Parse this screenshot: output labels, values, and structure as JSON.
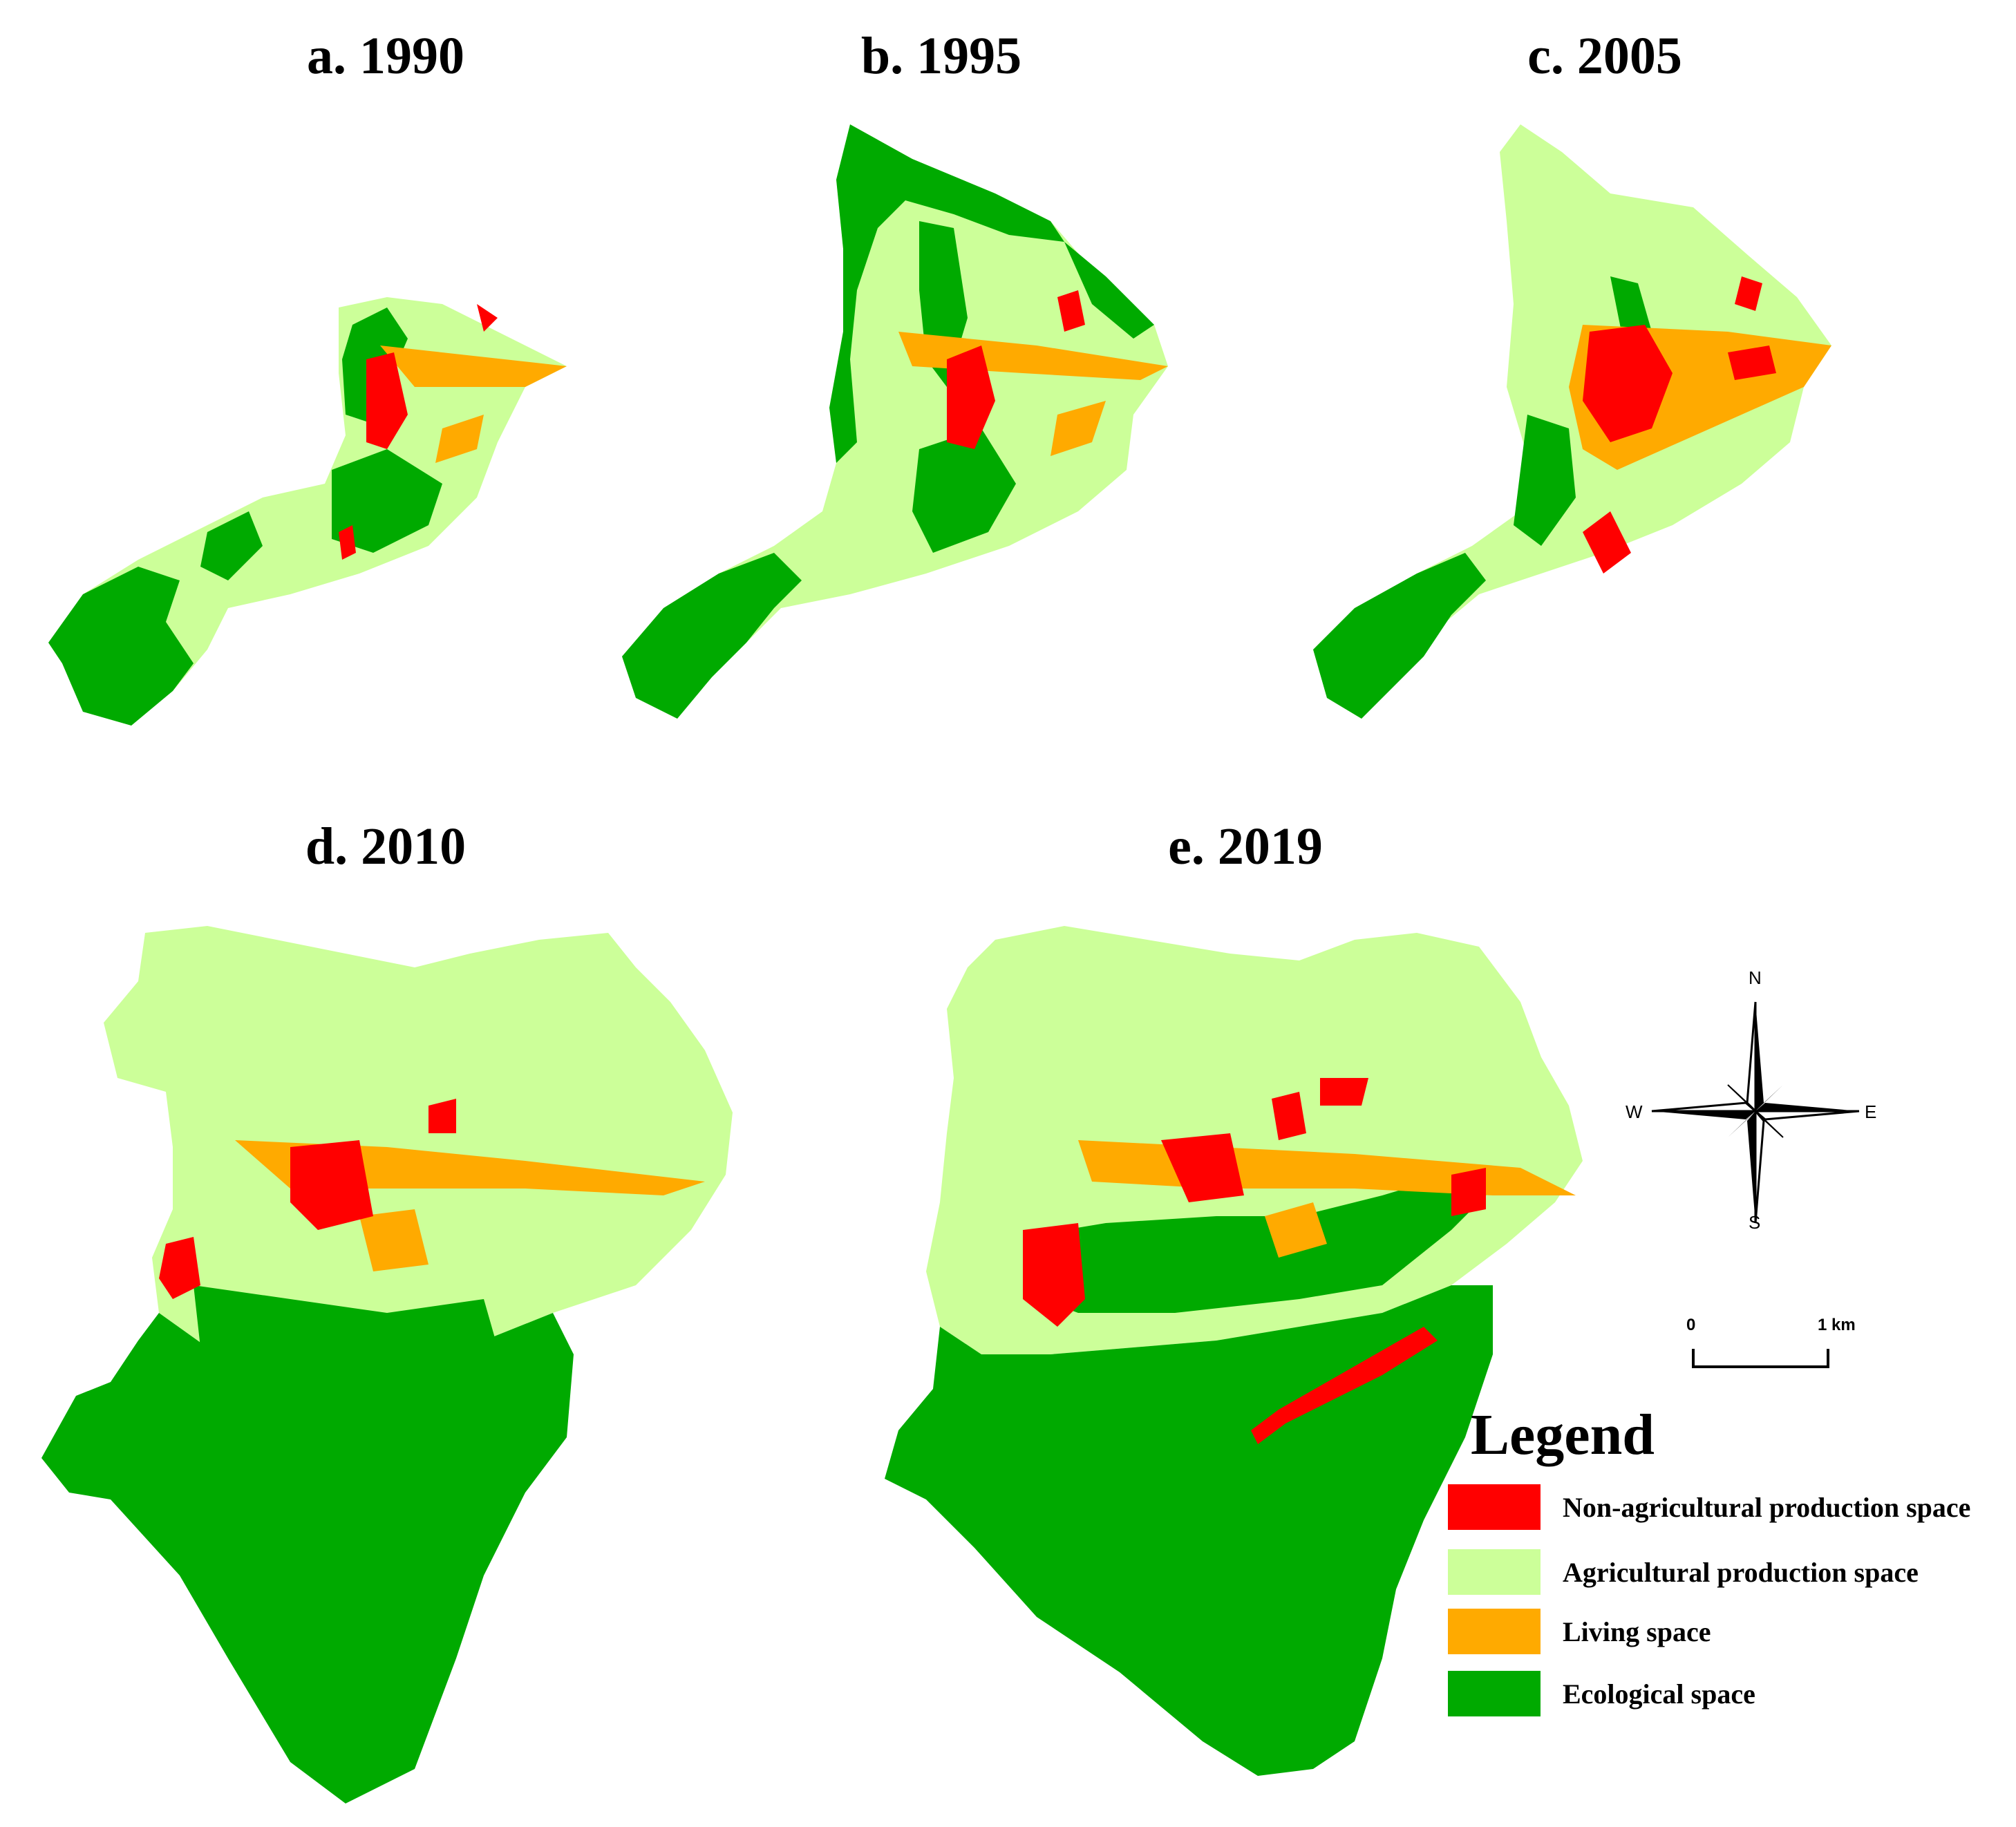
{
  "panels": [
    {
      "label": "a. 1990"
    },
    {
      "label": "b. 1995"
    },
    {
      "label": "c. 2005"
    },
    {
      "label": "d. 2010"
    },
    {
      "label": "e. 2019"
    }
  ],
  "colors": {
    "non_agricultural": "#ff0000",
    "agricultural": "#ccff99",
    "living": "#ffaa00",
    "ecological": "#00aa00"
  },
  "legend": {
    "title": "Legend",
    "items": [
      {
        "label": "Non-agricultural production space",
        "color": "#ff0000"
      },
      {
        "label": "Agricultural production space",
        "color": "#ccff99"
      },
      {
        "label": "Living space",
        "color": "#ffaa00"
      },
      {
        "label": "Ecological space",
        "color": "#00aa00"
      }
    ]
  },
  "compass": {
    "n": "N",
    "s": "S",
    "e": "E",
    "w": "W"
  },
  "scale_bar": {
    "start": "0",
    "end": "1 km"
  }
}
